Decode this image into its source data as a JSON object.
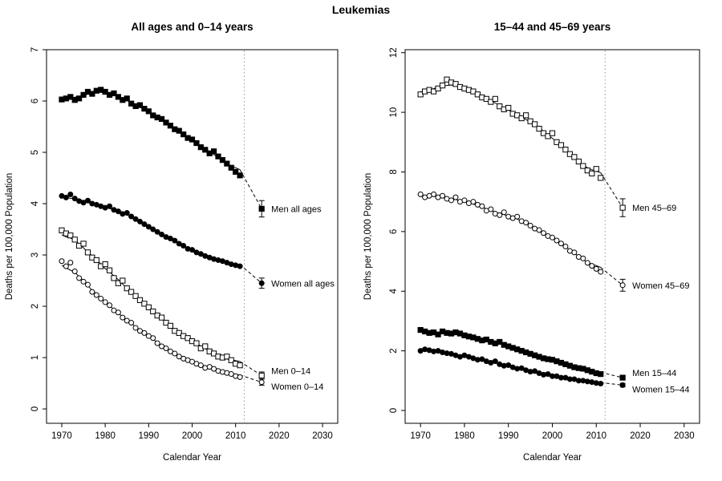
{
  "figure": {
    "title": "Leukemias"
  },
  "chart_data": [
    {
      "type": "scatter",
      "title": "All ages and 0–14 years",
      "xlabel": "Calendar Year",
      "ylabel": "Deaths per 100,000 Population",
      "xlim": [
        1966.5,
        2033.5
      ],
      "ylim": [
        0,
        7
      ],
      "xticks": [
        1970,
        1980,
        1990,
        2000,
        2010,
        2020,
        2030
      ],
      "yticks": [
        0,
        1,
        2,
        3,
        4,
        5,
        6,
        7
      ],
      "grid": false,
      "reference_year": 2012,
      "legend_position": "right-of-projection",
      "years": [
        1970,
        1971,
        1972,
        1973,
        1974,
        1975,
        1976,
        1977,
        1978,
        1979,
        1980,
        1981,
        1982,
        1983,
        1984,
        1985,
        1986,
        1987,
        1988,
        1989,
        1990,
        1991,
        1992,
        1993,
        1994,
        1995,
        1996,
        1997,
        1998,
        1999,
        2000,
        2001,
        2002,
        2003,
        2004,
        2005,
        2006,
        2007,
        2008,
        2009,
        2010,
        2011
      ],
      "series": [
        {
          "name": "Men all ages",
          "marker": "filled-square",
          "label_dy": 0,
          "values": [
            6.03,
            6.05,
            6.08,
            6.02,
            6.05,
            6.12,
            6.18,
            6.14,
            6.2,
            6.22,
            6.18,
            6.12,
            6.15,
            6.08,
            6.02,
            6.05,
            5.95,
            5.9,
            5.92,
            5.85,
            5.8,
            5.72,
            5.68,
            5.65,
            5.58,
            5.52,
            5.45,
            5.42,
            5.35,
            5.28,
            5.25,
            5.18,
            5.1,
            5.05,
            4.98,
            5.02,
            4.92,
            4.85,
            4.78,
            4.7,
            4.62,
            4.55
          ],
          "projection": {
            "year": 2016,
            "value": 3.9,
            "ci": [
              3.74,
              4.06
            ]
          }
        },
        {
          "name": "Women all ages",
          "marker": "filled-circle",
          "label_dy": 0,
          "values": [
            4.15,
            4.12,
            4.18,
            4.1,
            4.05,
            4.02,
            4.06,
            4.0,
            3.98,
            3.95,
            3.92,
            3.95,
            3.88,
            3.85,
            3.8,
            3.82,
            3.75,
            3.7,
            3.65,
            3.6,
            3.55,
            3.5,
            3.45,
            3.4,
            3.35,
            3.32,
            3.28,
            3.22,
            3.18,
            3.12,
            3.1,
            3.05,
            3.02,
            2.98,
            2.95,
            2.92,
            2.9,
            2.88,
            2.85,
            2.82,
            2.8,
            2.78
          ],
          "projection": {
            "year": 2016,
            "value": 2.45,
            "ci": [
              2.35,
              2.55
            ]
          }
        },
        {
          "name": "Men 0–14",
          "marker": "open-square",
          "label_dy": -6,
          "values": [
            3.48,
            3.42,
            3.38,
            3.3,
            3.18,
            3.22,
            3.05,
            2.95,
            2.9,
            2.78,
            2.82,
            2.7,
            2.55,
            2.45,
            2.5,
            2.35,
            2.28,
            2.2,
            2.12,
            2.05,
            1.98,
            1.9,
            1.82,
            1.78,
            1.68,
            1.62,
            1.52,
            1.48,
            1.42,
            1.38,
            1.32,
            1.28,
            1.18,
            1.22,
            1.12,
            1.08,
            1.02,
            1.0,
            1.02,
            0.95,
            0.88,
            0.85
          ],
          "projection": {
            "year": 2016,
            "value": 0.65,
            "ci": [
              0.58,
              0.72
            ]
          }
        },
        {
          "name": "Women 0–14",
          "marker": "open-circle",
          "label_dy": 5,
          "values": [
            2.88,
            2.78,
            2.85,
            2.68,
            2.55,
            2.48,
            2.42,
            2.28,
            2.22,
            2.15,
            2.08,
            2.02,
            1.92,
            1.88,
            1.78,
            1.72,
            1.68,
            1.58,
            1.52,
            1.48,
            1.42,
            1.38,
            1.28,
            1.22,
            1.18,
            1.12,
            1.08,
            1.02,
            0.98,
            0.95,
            0.92,
            0.88,
            0.85,
            0.8,
            0.82,
            0.78,
            0.74,
            0.72,
            0.7,
            0.68,
            0.64,
            0.62
          ],
          "projection": {
            "year": 2016,
            "value": 0.52,
            "ci": [
              0.46,
              0.58
            ]
          }
        }
      ]
    },
    {
      "type": "scatter",
      "title": "15–44 and 45–69 years",
      "xlabel": "Calendar Year",
      "ylabel": "Deaths per 100,000 Population",
      "xlim": [
        1966.5,
        2033.5
      ],
      "ylim": [
        0,
        12
      ],
      "xticks": [
        1970,
        1980,
        1990,
        2000,
        2010,
        2020,
        2030
      ],
      "yticks": [
        0,
        2,
        4,
        6,
        8,
        10,
        12
      ],
      "grid": false,
      "reference_year": 2012,
      "legend_position": "right-of-projection",
      "years": [
        1970,
        1971,
        1972,
        1973,
        1974,
        1975,
        1976,
        1977,
        1978,
        1979,
        1980,
        1981,
        1982,
        1983,
        1984,
        1985,
        1986,
        1987,
        1988,
        1989,
        1990,
        1991,
        1992,
        1993,
        1994,
        1995,
        1996,
        1997,
        1998,
        1999,
        2000,
        2001,
        2002,
        2003,
        2004,
        2005,
        2006,
        2007,
        2008,
        2009,
        2010,
        2011
      ],
      "series": [
        {
          "name": "Men 45–69",
          "marker": "open-square",
          "label_dy": 0,
          "values": [
            10.6,
            10.7,
            10.75,
            10.7,
            10.8,
            10.9,
            11.1,
            11.0,
            10.95,
            10.85,
            10.8,
            10.75,
            10.7,
            10.6,
            10.5,
            10.45,
            10.35,
            10.45,
            10.2,
            10.1,
            10.15,
            9.95,
            9.9,
            9.8,
            9.9,
            9.7,
            9.6,
            9.45,
            9.3,
            9.2,
            9.3,
            9.0,
            8.9,
            8.75,
            8.6,
            8.5,
            8.35,
            8.2,
            8.05,
            7.95,
            8.1,
            7.8
          ],
          "projection": {
            "year": 2016,
            "value": 6.8,
            "ci": [
              6.5,
              7.1
            ]
          }
        },
        {
          "name": "Women 45–69",
          "marker": "open-circle",
          "label_dy": 0,
          "values": [
            7.25,
            7.15,
            7.2,
            7.25,
            7.15,
            7.2,
            7.1,
            7.05,
            7.15,
            7.0,
            7.05,
            6.95,
            7.0,
            6.9,
            6.85,
            6.7,
            6.75,
            6.6,
            6.55,
            6.65,
            6.5,
            6.45,
            6.5,
            6.35,
            6.3,
            6.2,
            6.1,
            6.05,
            5.95,
            5.85,
            5.8,
            5.7,
            5.6,
            5.5,
            5.35,
            5.3,
            5.15,
            5.1,
            4.95,
            4.85,
            4.75,
            4.65
          ],
          "projection": {
            "year": 2016,
            "value": 4.2,
            "ci": [
              4.0,
              4.4
            ]
          }
        },
        {
          "name": "Men 15–44",
          "marker": "filled-square",
          "label_dy": -6,
          "values": [
            2.7,
            2.65,
            2.6,
            2.62,
            2.55,
            2.65,
            2.6,
            2.58,
            2.62,
            2.58,
            2.52,
            2.48,
            2.45,
            2.4,
            2.35,
            2.38,
            2.3,
            2.25,
            2.3,
            2.2,
            2.15,
            2.1,
            2.05,
            2.0,
            1.95,
            1.9,
            1.85,
            1.8,
            1.75,
            1.72,
            1.7,
            1.65,
            1.6,
            1.55,
            1.5,
            1.45,
            1.42,
            1.4,
            1.35,
            1.3,
            1.25,
            1.22
          ],
          "projection": {
            "year": 2016,
            "value": 1.1,
            "ci": [
              1.03,
              1.17
            ]
          }
        },
        {
          "name": "Women 15–44",
          "marker": "filled-circle",
          "label_dy": 5,
          "values": [
            2.0,
            2.05,
            2.02,
            1.98,
            2.0,
            1.95,
            1.92,
            1.9,
            1.85,
            1.8,
            1.85,
            1.8,
            1.75,
            1.7,
            1.72,
            1.65,
            1.6,
            1.65,
            1.55,
            1.5,
            1.52,
            1.45,
            1.4,
            1.42,
            1.35,
            1.3,
            1.32,
            1.25,
            1.2,
            1.22,
            1.15,
            1.15,
            1.1,
            1.1,
            1.05,
            1.05,
            1.0,
            1.0,
            0.97,
            0.95,
            0.92,
            0.9
          ],
          "projection": {
            "year": 2016,
            "value": 0.85,
            "ci": [
              0.79,
              0.91
            ]
          }
        }
      ]
    }
  ],
  "colors": {
    "foreground": "#000000",
    "marker_open_fill": "#ffffff",
    "reference_line": "#999999",
    "background": "#ffffff"
  }
}
